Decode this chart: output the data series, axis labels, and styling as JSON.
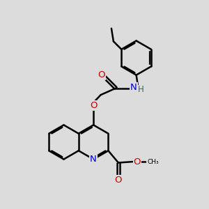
{
  "background_color": "#dcdcdc",
  "bond_color": "#000000",
  "bond_width": 1.8,
  "dbo": 0.07,
  "atom_colors": {
    "N": "#0000cc",
    "O": "#cc0000",
    "H": "#336666",
    "C": "#000000"
  },
  "font_size": 8.5,
  "fig_size": [
    3.0,
    3.0
  ],
  "dpi": 100
}
